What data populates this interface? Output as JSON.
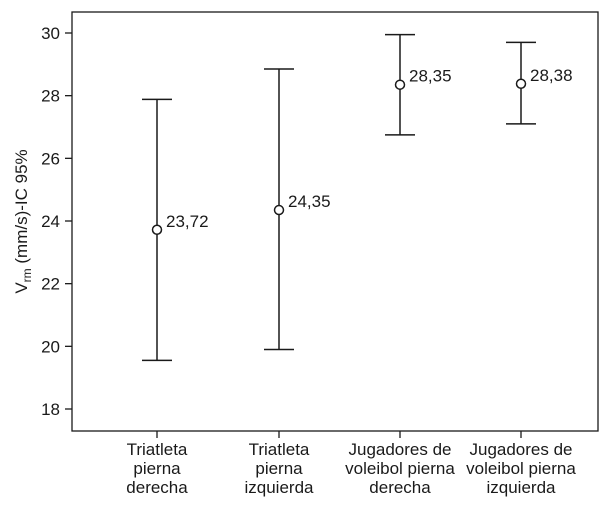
{
  "chart_data": {
    "type": "errorbar",
    "ylabel_main": "V",
    "ylabel_sub": "rm",
    "ylabel_rest": " (mm/s)-IC 95%",
    "ylim": [
      17.3,
      30.8
    ],
    "yticks": [
      18,
      20,
      22,
      24,
      26,
      28,
      30
    ],
    "ytick_labels": [
      "18",
      "20",
      "22",
      "24",
      "26",
      "28",
      "30"
    ],
    "grid": false,
    "categories": [
      [
        "Triatleta",
        "pierna",
        "derecha"
      ],
      [
        "Triatleta",
        "pierna",
        "izquierda"
      ],
      [
        "Jugadores de",
        "voleibol pierna",
        "derecha"
      ],
      [
        "Jugadores de",
        "voleibol pierna",
        "izquierda"
      ]
    ],
    "means": [
      23.72,
      24.35,
      28.35,
      28.38
    ],
    "mean_labels": [
      "23,72",
      "24,35",
      "28,35",
      "28,38"
    ],
    "ci_lower": [
      19.55,
      19.9,
      26.75,
      27.1
    ],
    "ci_upper": [
      27.88,
      28.85,
      29.95,
      29.7
    ]
  }
}
